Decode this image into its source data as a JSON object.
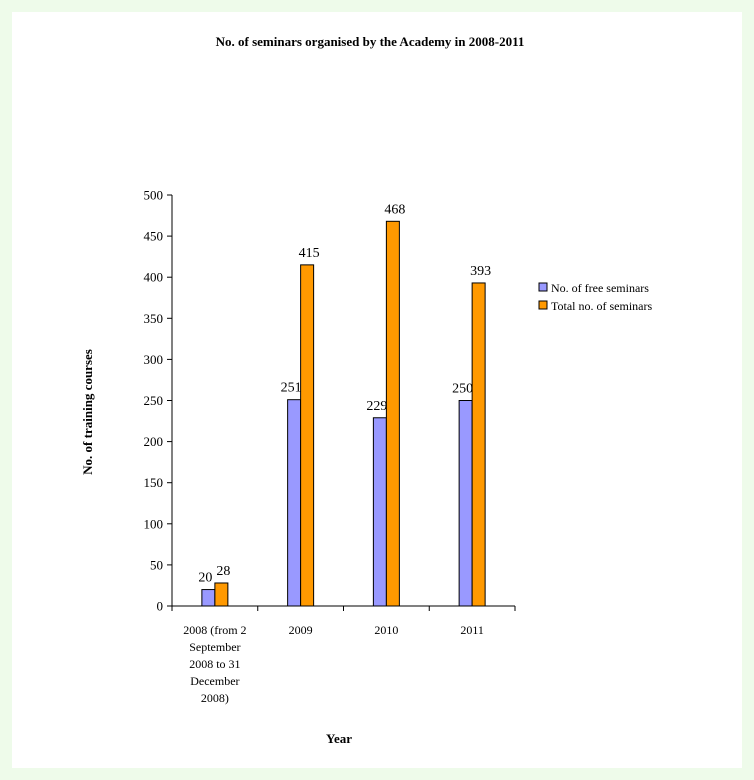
{
  "chart_data": {
    "type": "bar",
    "title": "No. of seminars organised by the Academy in 2008-2011",
    "xlabel": "Year",
    "ylabel": "No. of training courses",
    "ylim": [
      0,
      500
    ],
    "yticks": [
      0,
      50,
      100,
      150,
      200,
      250,
      300,
      350,
      400,
      450,
      500
    ],
    "categories": [
      "2008 (from 2 September 2008 to 31 December 2008)",
      "2009",
      "2010",
      "2011"
    ],
    "category_label_lines": [
      [
        "2008 (from 2",
        "September",
        "2008 to 31",
        "December",
        "2008)"
      ],
      [
        "2009"
      ],
      [
        "2010"
      ],
      [
        "2011"
      ]
    ],
    "series": [
      {
        "name": "No. of free seminars",
        "values": [
          20,
          251,
          229,
          250
        ],
        "color": "#9999ff"
      },
      {
        "name": "Total no. of seminars",
        "values": [
          28,
          415,
          468,
          393
        ],
        "color": "#ff9900"
      }
    ],
    "grid": false,
    "legend_position": "right"
  }
}
